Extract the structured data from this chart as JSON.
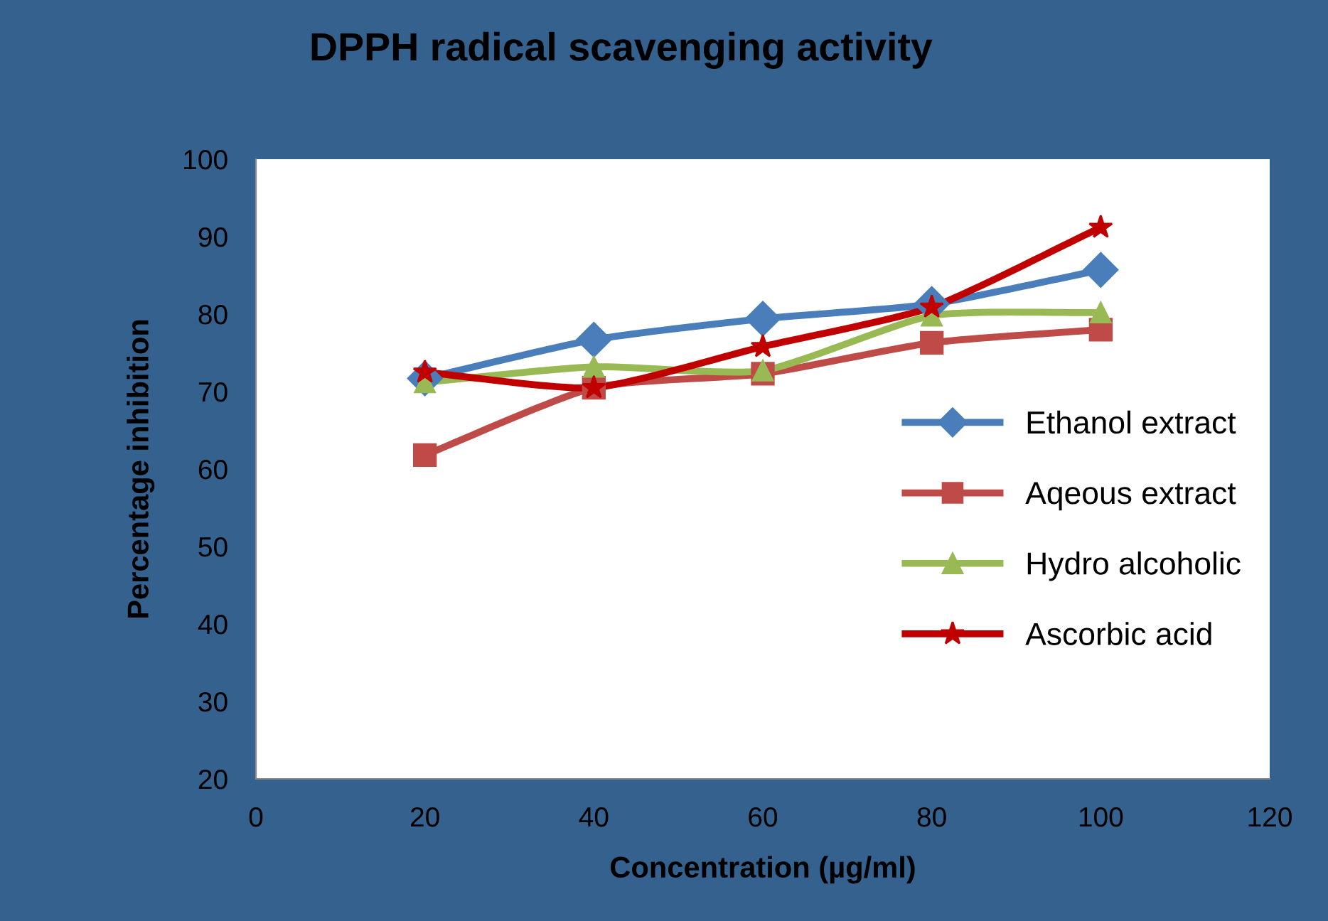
{
  "chart_data": {
    "type": "line",
    "title": "DPPH radical scavenging activity",
    "xlabel": "Concentration (µg/ml)",
    "ylabel": "Percentage inhibition",
    "x": [
      20,
      40,
      60,
      80,
      100
    ],
    "series": [
      {
        "name": "Ethanol extract",
        "color": "#4a7ebb",
        "marker": "diamond",
        "values": [
          71.7,
          76.7,
          79.4,
          81.3,
          85.7
        ]
      },
      {
        "name": "Aqeous extract",
        "color": "#be4b48",
        "marker": "square",
        "values": [
          61.8,
          70.5,
          72.3,
          76.3,
          78.0
        ]
      },
      {
        "name": "Hydro alcoholic",
        "color": "#98b954",
        "marker": "triangle",
        "values": [
          71.2,
          73.2,
          72.7,
          79.8,
          80.2
        ]
      },
      {
        "name": "Ascorbic acid",
        "color": "#c00000",
        "marker": "star",
        "values": [
          72.5,
          70.5,
          75.8,
          80.9,
          91.2
        ]
      }
    ],
    "xlim": [
      0,
      120
    ],
    "xticks": [
      0,
      20,
      40,
      60,
      80,
      100,
      120
    ],
    "ylim": [
      20,
      100
    ],
    "yticks": [
      20,
      30,
      40,
      50,
      60,
      70,
      80,
      90,
      100
    ],
    "grid": false,
    "legend": "right"
  }
}
